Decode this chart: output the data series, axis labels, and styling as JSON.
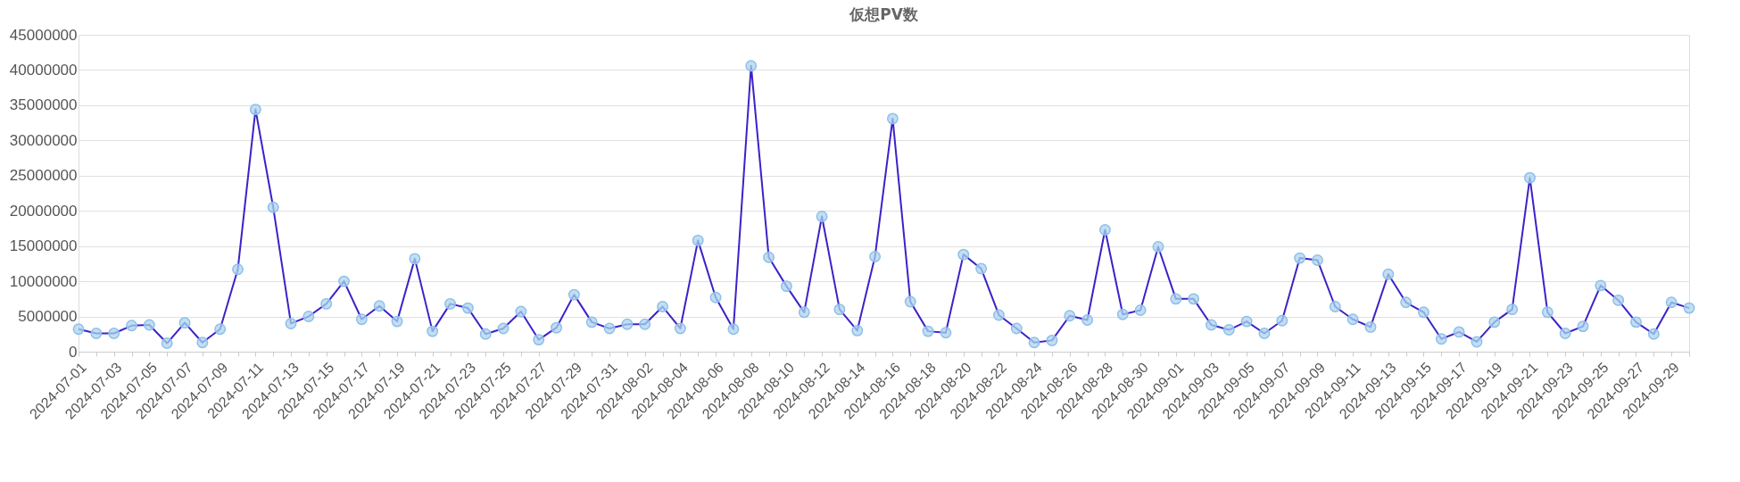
{
  "chart_data": {
    "type": "line",
    "title": "仮想PV数",
    "categories": [
      "2024-07-01",
      null,
      "2024-07-03",
      null,
      "2024-07-05",
      null,
      "2024-07-07",
      null,
      "2024-07-09",
      null,
      "2024-07-11",
      null,
      "2024-07-13",
      null,
      "2024-07-15",
      null,
      "2024-07-17",
      null,
      "2024-07-19",
      null,
      "2024-07-21",
      null,
      "2024-07-23",
      null,
      "2024-07-25",
      null,
      "2024-07-27",
      null,
      "2024-07-29",
      null,
      "2024-07-31",
      null,
      "2024-08-02",
      null,
      "2024-08-04",
      null,
      "2024-08-06",
      null,
      "2024-08-08",
      null,
      "2024-08-10",
      null,
      "2024-08-12",
      null,
      "2024-08-14",
      null,
      "2024-08-16",
      null,
      "2024-08-18",
      null,
      "2024-08-20",
      null,
      "2024-08-22",
      null,
      "2024-08-24",
      null,
      "2024-08-26",
      null,
      "2024-08-28",
      null,
      "2024-08-30",
      null,
      "2024-09-01",
      null,
      "2024-09-03",
      null,
      "2024-09-05",
      null,
      "2024-09-07",
      null,
      "2024-09-09",
      null,
      "2024-09-11",
      null,
      "2024-09-13",
      null,
      "2024-09-15",
      null,
      "2024-09-17",
      null,
      "2024-09-19",
      null,
      "2024-09-21",
      null,
      "2024-09-23",
      null,
      "2024-09-25",
      null,
      "2024-09-27",
      null,
      "2024-09-29",
      null
    ],
    "series": [
      {
        "color": "#3b22c8",
        "values": [
          3200000,
          2600000,
          2600000,
          3700000,
          3800000,
          1200000,
          4100000,
          1300000,
          3200000,
          11700000,
          34400000,
          20500000,
          4000000,
          5000000,
          6800000,
          10000000,
          4600000,
          6500000,
          4300000,
          13200000,
          2900000,
          6800000,
          6200000,
          2500000,
          3300000,
          5700000,
          1700000,
          3400000,
          8100000,
          4200000,
          3300000,
          3900000,
          3900000,
          6400000,
          3300000,
          15800000,
          7700000,
          3200000,
          40600000,
          13400000,
          9300000,
          5600000,
          19200000,
          6000000,
          3000000,
          13500000,
          33100000,
          7100000,
          2900000,
          2700000,
          13800000,
          11800000,
          5200000,
          3300000,
          1300000,
          1600000,
          5100000,
          4500000,
          17300000,
          5300000,
          5900000,
          14900000,
          7500000,
          7500000,
          3800000,
          3100000,
          4300000,
          2600000,
          4400000,
          13300000,
          13000000,
          6400000,
          4600000,
          3500000,
          11000000,
          7000000,
          5600000,
          1800000,
          2800000,
          1400000,
          4200000,
          6000000,
          24700000,
          5600000,
          2600000,
          3600000,
          9400000,
          7300000,
          4200000,
          2500000,
          7000000,
          6200000
        ]
      }
    ],
    "ylim": [
      0,
      45000000
    ],
    "yticks": [
      0,
      5000000,
      10000000,
      15000000,
      20000000,
      25000000,
      30000000,
      35000000,
      40000000,
      45000000
    ],
    "grid": "y",
    "marker": "circle",
    "line_style": "solid"
  }
}
